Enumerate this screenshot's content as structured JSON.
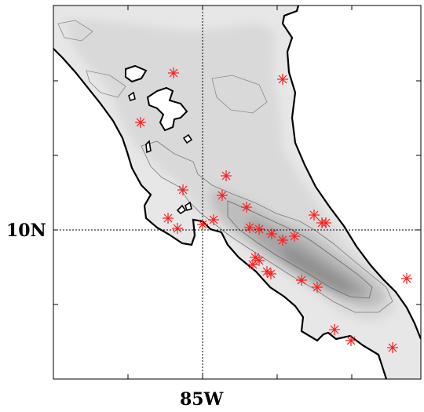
{
  "map": {
    "lat_label": "10N",
    "lon_label": "85W",
    "gridline_lat": "10N",
    "gridline_lon": "85W",
    "land_color": "#ffffff",
    "shading_colors": [
      "#e6e6e6",
      "#d2d2d2",
      "#bebebe",
      "#a8a8a8",
      "#929292"
    ],
    "coast_color": "#000000",
    "marker_color": "#ff1a1a",
    "marker_symbol": "asterisk",
    "marker_count": 33
  }
}
